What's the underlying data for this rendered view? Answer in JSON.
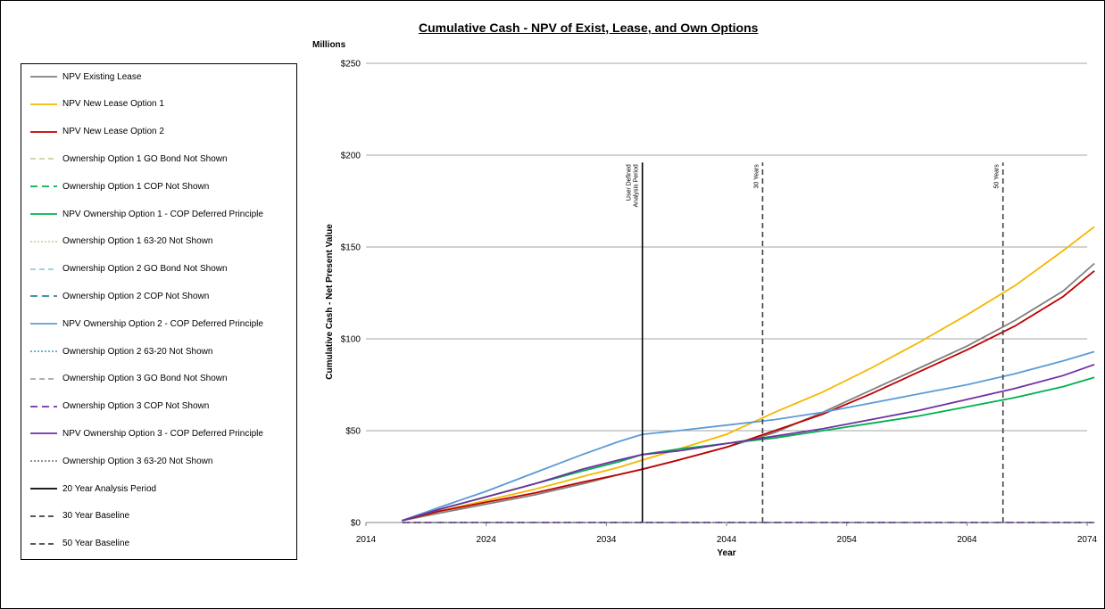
{
  "chart_data": {
    "type": "line",
    "title": "Cumulative Cash - NPV of Exist, Lease, and Own Options",
    "unit_label": "Millions",
    "xlabel": "Year",
    "ylabel": "Cumulative Cash - Net Present Value",
    "xlim": [
      2014,
      2074
    ],
    "ylim": [
      0,
      250
    ],
    "x_ticks": [
      2014,
      2024,
      2034,
      2044,
      2054,
      2064,
      2074
    ],
    "y_ticks": [
      {
        "value": 0,
        "label": "$0"
      },
      {
        "value": 50,
        "label": "$50"
      },
      {
        "value": 100,
        "label": "$100"
      },
      {
        "value": 150,
        "label": "$150"
      },
      {
        "value": 200,
        "label": "$200"
      },
      {
        "value": 250,
        "label": "$250"
      }
    ],
    "grid": "horizontal",
    "legend_position": "left",
    "series": [
      {
        "name": "NPV Existing Lease",
        "color": "#808080",
        "dash": "solid",
        "x": [
          2017,
          2020,
          2024,
          2028,
          2032,
          2035,
          2037,
          2040,
          2044,
          2048,
          2052,
          2056,
          2060,
          2064,
          2068,
          2072,
          2074.6
        ],
        "y": [
          1,
          5,
          10,
          15,
          21,
          26,
          29,
          34,
          41,
          49,
          60,
          72,
          84,
          96,
          110,
          126,
          141
        ]
      },
      {
        "name": "NPV New Lease Option 1",
        "color": "#F5B800",
        "dash": "solid",
        "x": [
          2017,
          2020,
          2024,
          2028,
          2032,
          2035,
          2037,
          2040,
          2044,
          2048,
          2052,
          2056,
          2060,
          2064,
          2068,
          2072,
          2074.6
        ],
        "y": [
          1,
          6,
          12,
          18,
          25,
          30,
          34,
          40,
          48,
          60,
          71,
          84,
          98,
          113,
          129,
          148,
          161
        ]
      },
      {
        "name": "NPV New Lease Option 2",
        "color": "#C00000",
        "dash": "solid",
        "x": [
          2017,
          2020,
          2024,
          2028,
          2032,
          2035,
          2037,
          2040,
          2044,
          2048,
          2052,
          2056,
          2060,
          2064,
          2068,
          2072,
          2074.6
        ],
        "y": [
          1,
          6,
          11,
          16,
          22,
          26,
          29,
          34,
          41,
          50,
          59,
          70,
          82,
          94,
          107,
          123,
          137
        ]
      },
      {
        "name": "Ownership Option 1 GO Bond Not Shown",
        "color": "#C4D79B",
        "dash": "6,4",
        "x": [
          2017,
          2074.6
        ],
        "y": [
          0,
          0
        ]
      },
      {
        "name": "Ownership Option 1 COP Not Shown",
        "color": "#00B050",
        "dash": "8,5",
        "x": [
          2017,
          2074.6
        ],
        "y": [
          0,
          0
        ]
      },
      {
        "name": "NPV Ownership Option 1 - COP Deferred Principle",
        "color": "#00B050",
        "dash": "solid",
        "x": [
          2017,
          2020,
          2024,
          2028,
          2032,
          2035,
          2037,
          2040,
          2044,
          2048,
          2052,
          2056,
          2060,
          2064,
          2068,
          2072,
          2074.6
        ],
        "y": [
          1,
          7,
          14,
          21,
          28,
          33,
          37,
          40,
          43,
          46,
          50,
          54,
          58,
          63,
          68,
          74,
          79
        ]
      },
      {
        "name": "Ownership Option 1 63-20 Not Shown",
        "color": "#C4D79B",
        "dash": "2,2",
        "x": [
          2017,
          2074.6
        ],
        "y": [
          0,
          0
        ]
      },
      {
        "name": "Ownership Option 2 GO Bond Not Shown",
        "color": "#92CDDC",
        "dash": "6,4",
        "x": [
          2017,
          2074.6
        ],
        "y": [
          0,
          0
        ]
      },
      {
        "name": "Ownership Option 2 COP Not Shown",
        "color": "#31859C",
        "dash": "8,5",
        "x": [
          2017,
          2074.6
        ],
        "y": [
          0,
          0
        ]
      },
      {
        "name": "NPV Ownership Option 2 - COP Deferred Principle",
        "color": "#5B9BD5",
        "dash": "solid",
        "x": [
          2017,
          2020,
          2024,
          2028,
          2032,
          2035,
          2037,
          2040,
          2044,
          2048,
          2052,
          2056,
          2060,
          2064,
          2068,
          2072,
          2074.6
        ],
        "y": [
          1,
          8,
          17,
          27,
          37,
          44,
          48,
          50,
          53,
          56,
          60,
          65,
          70,
          75,
          81,
          88,
          93
        ]
      },
      {
        "name": "Ownership Option 2 63-20 Not Shown",
        "color": "#4BACC6",
        "dash": "2,2",
        "x": [
          2017,
          2074.6
        ],
        "y": [
          0,
          0
        ]
      },
      {
        "name": "Ownership Option 3 GO Bond Not Shown",
        "color": "#A6A6A6",
        "dash": "6,4",
        "x": [
          2017,
          2074.6
        ],
        "y": [
          0,
          0
        ]
      },
      {
        "name": "Ownership Option 3 COP Not Shown",
        "color": "#7030A0",
        "dash": "8,5",
        "x": [
          2017,
          2074.6
        ],
        "y": [
          0,
          0
        ]
      },
      {
        "name": "NPV Ownership Option 3 - COP Deferred Principle",
        "color": "#7030A0",
        "dash": "solid",
        "x": [
          2017,
          2020,
          2024,
          2028,
          2032,
          2035,
          2037,
          2040,
          2044,
          2048,
          2052,
          2056,
          2060,
          2064,
          2068,
          2072,
          2074.6
        ],
        "y": [
          1,
          7,
          14,
          21,
          29,
          34,
          37,
          39,
          43,
          47,
          51,
          56,
          61,
          67,
          73,
          80,
          86
        ]
      },
      {
        "name": "Ownership Option 3 63-20 Not Shown",
        "color": "#808080",
        "dash": "2,2",
        "x": [
          2017,
          2074.6
        ],
        "y": [
          0,
          0
        ]
      },
      {
        "name": "20 Year Analysis Period",
        "color": "#000000",
        "dash": "solid",
        "x": [
          2037,
          2037
        ],
        "y": [
          0,
          196
        ]
      },
      {
        "name": "30 Year Baseline",
        "color": "#404040",
        "dash": "6,4",
        "x": [
          2047,
          2047
        ],
        "y": [
          0,
          196
        ]
      },
      {
        "name": "50 Year Baseline",
        "color": "#404040",
        "dash": "6,4",
        "x": [
          2067,
          2067
        ],
        "y": [
          0,
          196
        ]
      }
    ],
    "annotations": [
      {
        "x": 2037,
        "lines": [
          "User Defined",
          "Analysis Period"
        ]
      },
      {
        "x": 2047,
        "lines": [
          "30 Years"
        ]
      },
      {
        "x": 2067,
        "lines": [
          "50 Years"
        ]
      }
    ]
  }
}
